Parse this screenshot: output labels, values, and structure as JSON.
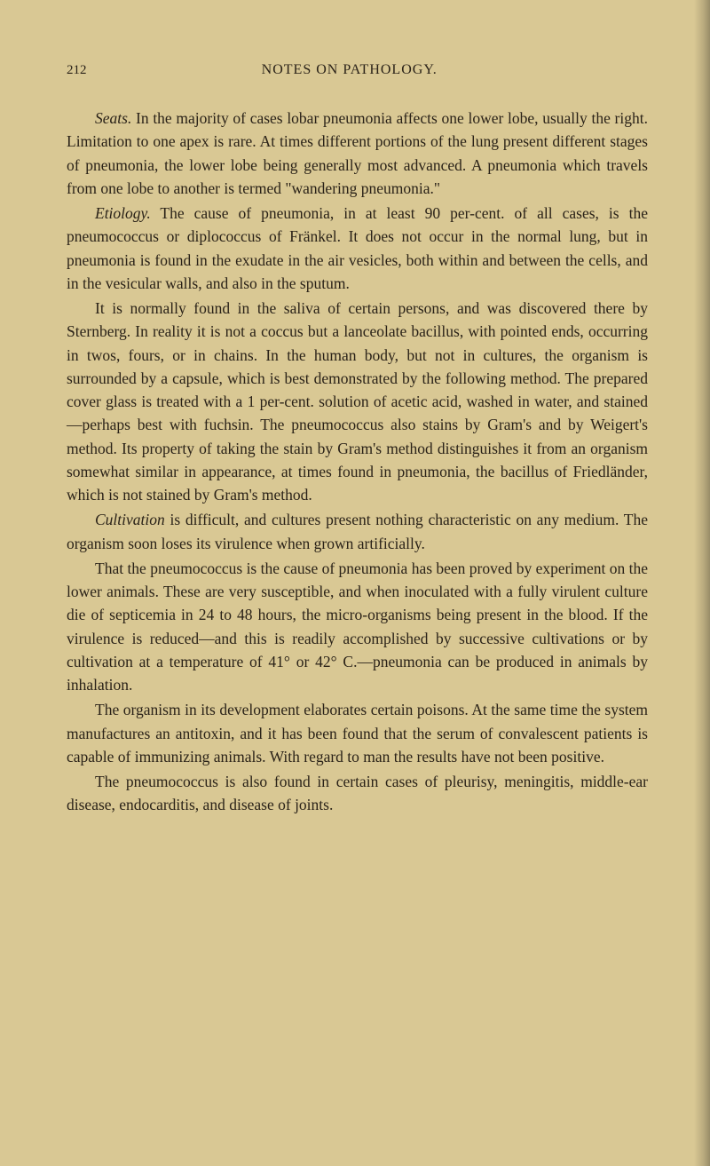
{
  "page_number": "212",
  "chapter_title": "NOTES ON PATHOLOGY.",
  "paragraphs": [
    {
      "lead_italic": "Seats.",
      "text": " In the majority of cases lobar pneumonia affects one lower lobe, usually the right. Limitation to one apex is rare. At times different portions of the lung present different stages of pneumonia, the lower lobe being generally most advanced. A pneumonia which travels from one lobe to another is termed \"wandering pneumonia.\""
    },
    {
      "lead_italic": "Etiology.",
      "text": " The cause of pneumonia, in at least 90 per-cent. of all cases, is the pneumococcus or diplococcus of Fränkel. It does not occur in the normal lung, but in pneumonia is found in the exudate in the air vesicles, both within and between the cells, and in the vesicular walls, and also in the sputum."
    },
    {
      "lead_italic": "",
      "text": "It is normally found in the saliva of certain persons, and was discovered there by Sternberg. In reality it is not a coccus but a lanceolate bacillus, with pointed ends, occurring in twos, fours, or in chains. In the human body, but not in cultures, the organism is surrounded by a capsule, which is best demonstrated by the following method. The prepared cover glass is treated with a 1 per-cent. solution of acetic acid, washed in water, and stained—perhaps best with fuchsin. The pneumococcus also stains by Gram's and by Weigert's method. Its property of taking the stain by Gram's method distinguishes it from an organism somewhat similar in appearance, at times found in pneumonia, the bacillus of Friedländer, which is not stained by Gram's method."
    },
    {
      "lead_italic": "Cultivation",
      "text": " is difficult, and cultures present nothing characteristic on any medium. The organism soon loses its virulence when grown artificially."
    },
    {
      "lead_italic": "",
      "text": "That the pneumococcus is the cause of pneumonia has been proved by experiment on the lower animals. These are very susceptible, and when inoculated with a fully virulent culture die of septicemia in 24 to 48 hours, the micro-organisms being present in the blood. If the virulence is reduced—and this is readily accomplished by successive cultivations or by cultivation at a temperature of 41° or 42° C.—pneumonia can be produced in animals by inhalation."
    },
    {
      "lead_italic": "",
      "text": "The organism in its development elaborates certain poisons. At the same time the system manufactures an antitoxin, and it has been found that the serum of convalescent patients is capable of immunizing animals. With regard to man the results have not been positive."
    },
    {
      "lead_italic": "",
      "text": "The pneumococcus is also found in certain cases of pleurisy, meningitis, middle-ear disease, endocarditis, and disease of joints."
    }
  ],
  "colors": {
    "background": "#d9c894",
    "text": "#2a2218"
  },
  "typography": {
    "body_fontsize": 17.5,
    "header_fontsize": 16,
    "pagenum_fontsize": 15,
    "line_height": 1.5,
    "font_family": "Georgia, Times New Roman, serif"
  }
}
